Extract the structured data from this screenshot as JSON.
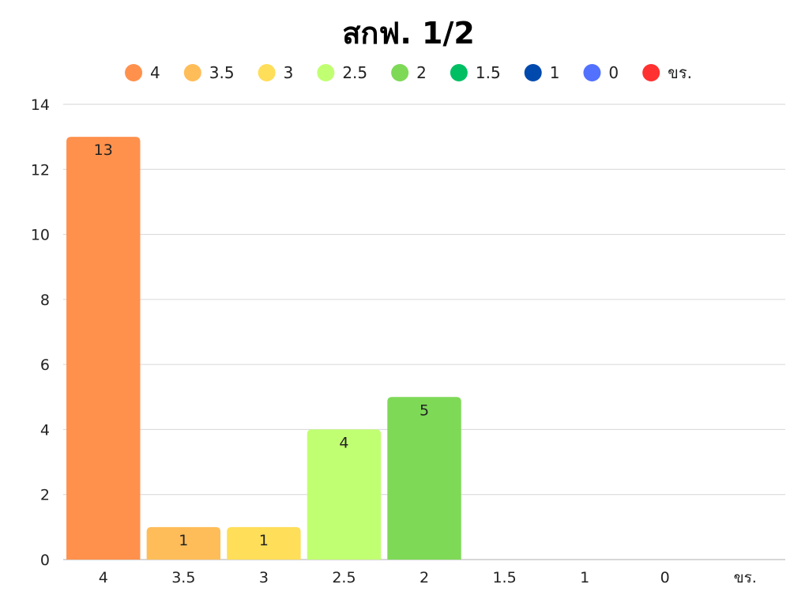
{
  "chart_data": {
    "type": "bar",
    "title": "สกฟ. 1/2",
    "xlabel": "",
    "ylabel": "",
    "categories": [
      "4",
      "3.5",
      "3",
      "2.5",
      "2",
      "1.5",
      "1",
      "0",
      "ขร."
    ],
    "values": [
      13,
      1,
      1,
      4,
      5,
      0,
      0,
      0,
      0
    ],
    "colors": [
      "#ff914d",
      "#ffbd59",
      "#ffde59",
      "#c1ff72",
      "#7ed957",
      "#00bf63",
      "#004aad",
      "#5271ff",
      "#ff3131"
    ],
    "ylim": [
      0,
      14
    ],
    "yticks": [
      0,
      2,
      4,
      6,
      8,
      10,
      12,
      14
    ],
    "grid": true,
    "legend": {
      "position": "top",
      "entries": [
        "4",
        "3.5",
        "3",
        "2.5",
        "2",
        "1.5",
        "1",
        "0",
        "ขร."
      ]
    }
  }
}
